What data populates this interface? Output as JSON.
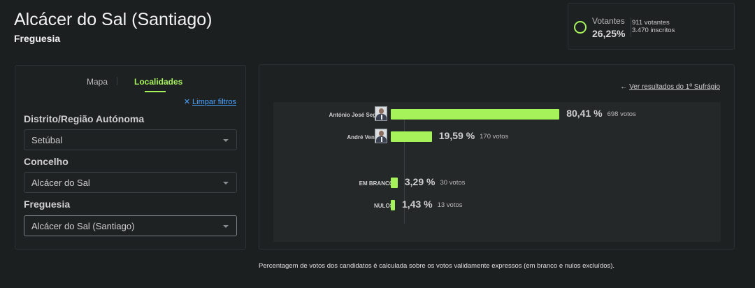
{
  "header": {
    "title": "Alcácer do Sal (Santiago)",
    "subtitle": "Freguesia"
  },
  "turnout": {
    "label": "Votantes",
    "percent": "26,25%",
    "voters": "911 votantes",
    "registered": "3.470 inscritos"
  },
  "filters": {
    "tabs": [
      {
        "label": "Mapa",
        "active": false
      },
      {
        "label": "Localidades",
        "active": true
      }
    ],
    "clear_label": "Limpar filtros",
    "district_label": "Distrito/Região Autónoma",
    "district_value": "Setúbal",
    "council_label": "Concelho",
    "council_value": "Alcácer do Sal",
    "parish_label": "Freguesia",
    "parish_value": "Alcácer do Sal (Santiago)"
  },
  "results": {
    "back_link": "Ver resultados do 1º Sufrágio",
    "rows": [
      {
        "name": "António José Seguro",
        "percent_label": "80,41 %",
        "votes_label": "698 votos",
        "percent": 80.41,
        "has_photo": true
      },
      {
        "name": "André Ventura",
        "percent_label": "19,59 %",
        "votes_label": "170 votos",
        "percent": 19.59,
        "has_photo": true
      },
      {
        "name": "EM BRANCO",
        "percent_label": "3,29 %",
        "votes_label": "30 votos",
        "percent": 3.29,
        "has_photo": false
      },
      {
        "name": "NULOS",
        "percent_label": "1,43 %",
        "votes_label": "13 votos",
        "percent": 1.43,
        "has_photo": false
      }
    ],
    "accent_color": "#a6f25a"
  },
  "footnote": "Percentagem de votos dos candidatos é calculada sobre os votos validamente expressos (em branco e nulos excluídos)."
}
